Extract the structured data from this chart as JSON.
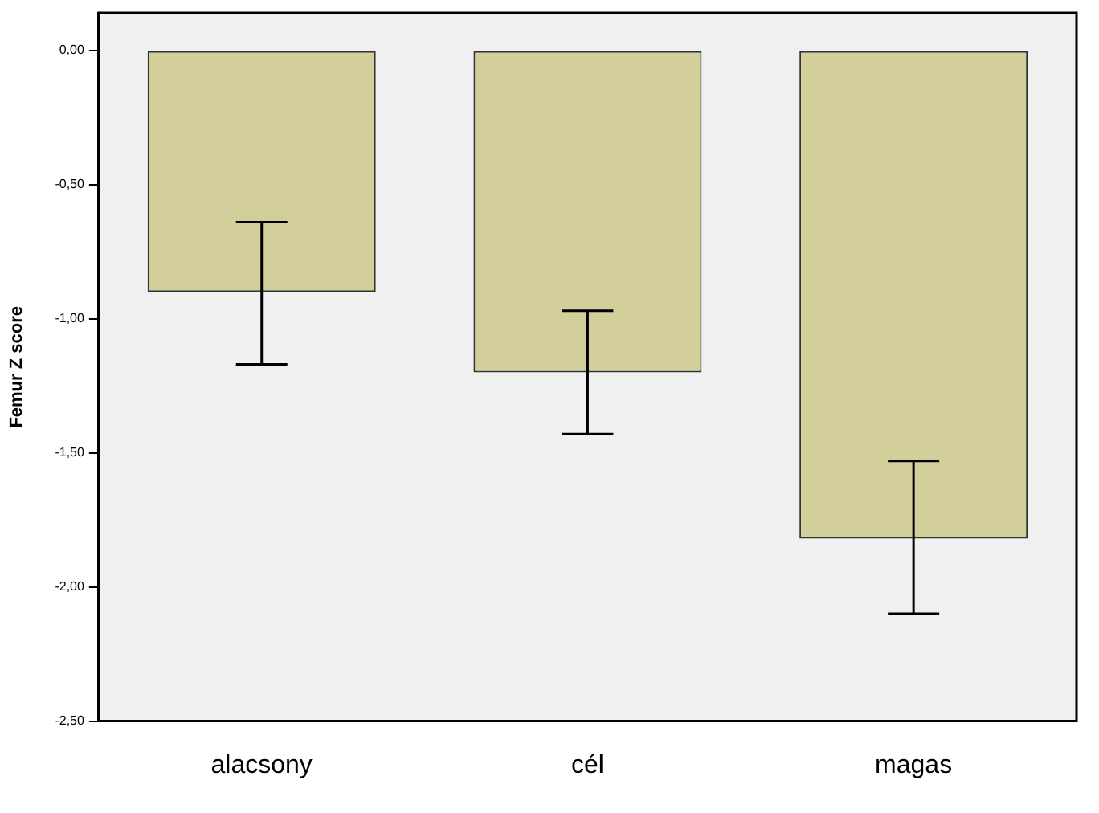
{
  "chart_data": {
    "type": "bar",
    "ylabel": "Femur Z score",
    "categories": [
      "alacsony",
      "cél",
      "magas"
    ],
    "values": [
      -0.9,
      -1.2,
      -1.82
    ],
    "errors": [
      [
        -1.17,
        -0.64
      ],
      [
        -1.43,
        -0.97
      ],
      [
        -2.1,
        -1.53
      ]
    ],
    "color": "#d3cf9b",
    "ylim": [
      -2.5,
      0.14
    ],
    "yticks": [
      {
        "value": 0,
        "label": "0,00"
      },
      {
        "value": -0.5,
        "label": "-0,50"
      },
      {
        "value": -1,
        "label": "-1,00"
      },
      {
        "value": -1.5,
        "label": "-1,50"
      },
      {
        "value": -2,
        "label": "-2,00"
      },
      {
        "value": -2.5,
        "label": "-2,50"
      }
    ],
    "grid": false,
    "legend": false
  }
}
